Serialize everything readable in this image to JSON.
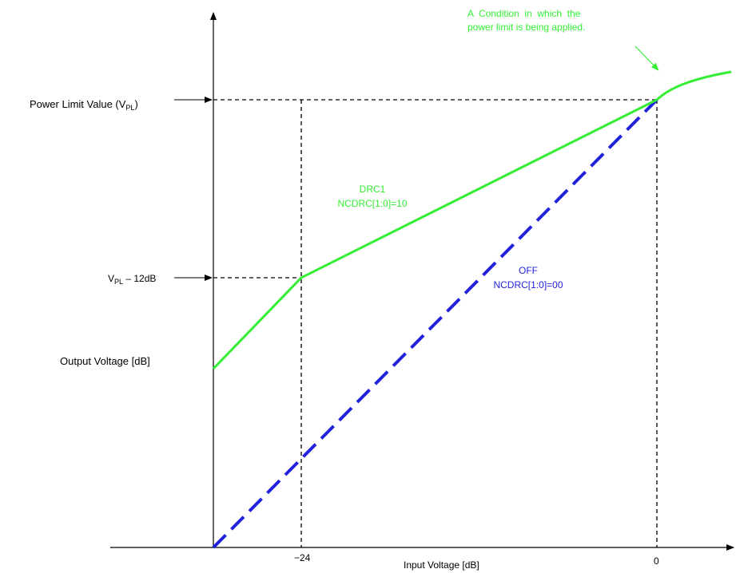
{
  "axes": {
    "y_label": "Output Voltage [dB]",
    "x_label": "Input Voltage [dB]",
    "x_ticks": [
      "−24",
      "0"
    ]
  },
  "levels": {
    "power_limit": {
      "text": "Power Limit Value (V",
      "sub": "PL",
      "close": ")"
    },
    "vpl_minus_12": {
      "text": "V",
      "sub": "PL",
      "rest": " – 12dB"
    }
  },
  "curves": {
    "drc1": {
      "line1": "DRC1",
      "line2": "NCDRC[1:0]=10",
      "color": "#33ee33"
    },
    "off": {
      "line1": "OFF",
      "line2": "NCDRC[1:0]=00",
      "color": "#2222dd"
    }
  },
  "annotation": {
    "line1": "A  Condition  in  which  the",
    "line2": "power limit is being applied.",
    "color": "#33ee33"
  },
  "colors": {
    "axis": "#000000",
    "guide": "#000000"
  }
}
